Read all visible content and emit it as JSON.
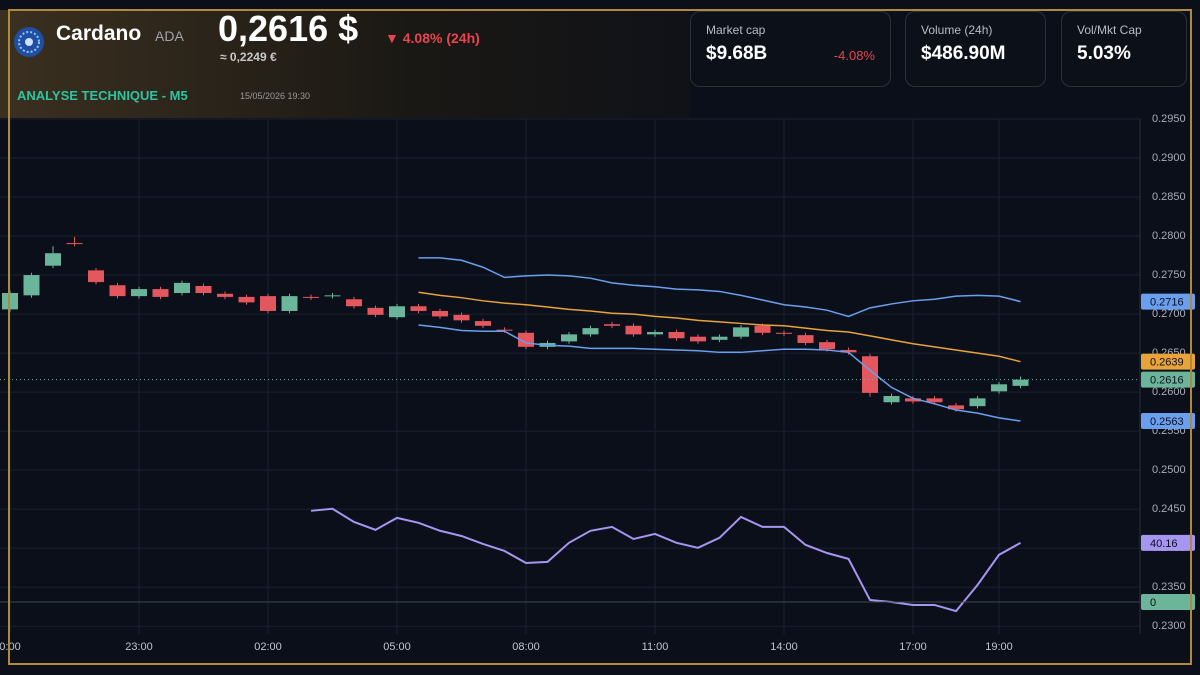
{
  "header": {
    "name": "Cardano",
    "symbol": "ADA",
    "price": "0,2616 $",
    "change": "▼ 4.08% (24h)",
    "eur": "≈ 0,2249 €",
    "subtitle": "ANALYSE TECHNIQUE - M5",
    "timestamp": "15/05/2026 19:30"
  },
  "stats": [
    {
      "label": "Market cap",
      "value": "$9.68B",
      "change": "-4.08%"
    },
    {
      "label": "Volume (24h)",
      "value": "$486.90M"
    },
    {
      "label": "Vol/Mkt Cap",
      "value": "5.03%"
    }
  ],
  "chart_data": {
    "type": "candlestick",
    "up_color": "#6bb59a",
    "down_color": "#e5575e",
    "grid": true,
    "categories": [
      "0:00",
      null,
      null,
      null,
      null,
      null,
      "23:00",
      null,
      null,
      null,
      null,
      null,
      "02:00",
      null,
      null,
      null,
      null,
      null,
      "05:00",
      null,
      null,
      null,
      null,
      null,
      "08:00",
      null,
      null,
      null,
      null,
      null,
      "11:00",
      null,
      null,
      null,
      null,
      null,
      "14:00",
      null,
      null,
      null,
      null,
      null,
      "17:00",
      null,
      null,
      null,
      "19:00",
      null
    ],
    "open": [
      0.2706,
      0.2724,
      0.2762,
      0.2791,
      0.2756,
      0.2737,
      0.2723,
      0.2732,
      0.2727,
      0.2736,
      0.2726,
      0.2722,
      0.2723,
      0.2704,
      0.2722,
      0.2723,
      0.2719,
      0.2708,
      0.2696,
      0.271,
      0.2704,
      0.2699,
      0.2691,
      0.268,
      0.2676,
      0.2658,
      0.2665,
      0.2674,
      0.2687,
      0.2685,
      0.2674,
      0.2677,
      0.2671,
      0.2667,
      0.2671,
      0.2685,
      0.2676,
      0.2673,
      0.2664,
      0.2654,
      0.2646,
      0.2587,
      0.2592,
      0.2592,
      0.2583,
      0.2582,
      0.2601,
      0.2608
    ],
    "high": [
      0.273,
      0.2753,
      0.2787,
      0.2799,
      0.2759,
      0.274,
      0.2735,
      0.2735,
      0.2743,
      0.2739,
      0.2729,
      0.2725,
      0.2726,
      0.2726,
      0.2725,
      0.2727,
      0.2722,
      0.2711,
      0.2713,
      0.2713,
      0.2707,
      0.2702,
      0.2694,
      0.2683,
      0.2679,
      0.2666,
      0.2677,
      0.2685,
      0.269,
      0.2688,
      0.268,
      0.268,
      0.2674,
      0.2674,
      0.2686,
      0.2688,
      0.2679,
      0.2676,
      0.2667,
      0.2657,
      0.2649,
      0.2598,
      0.2595,
      0.2595,
      0.2586,
      0.2595,
      0.2613,
      0.262
    ],
    "low": [
      0.2703,
      0.2721,
      0.2759,
      0.2787,
      0.2738,
      0.272,
      0.272,
      0.2719,
      0.2724,
      0.2724,
      0.2719,
      0.2712,
      0.2701,
      0.2701,
      0.2718,
      0.272,
      0.2707,
      0.2696,
      0.2693,
      0.2701,
      0.2694,
      0.2689,
      0.2682,
      0.2676,
      0.2655,
      0.2655,
      0.2662,
      0.2671,
      0.2682,
      0.2671,
      0.2671,
      0.2666,
      0.2662,
      0.2664,
      0.2668,
      0.2673,
      0.2672,
      0.266,
      0.2652,
      0.2648,
      0.2594,
      0.2584,
      0.2585,
      0.2584,
      0.2575,
      0.2579,
      0.2598,
      0.2605
    ],
    "close": [
      0.2727,
      0.275,
      0.2778,
      0.279,
      0.2741,
      0.2723,
      0.2732,
      0.2722,
      0.274,
      0.2727,
      0.2722,
      0.2715,
      0.2704,
      0.2723,
      0.2721,
      0.2724,
      0.271,
      0.2699,
      0.271,
      0.2704,
      0.2697,
      0.2692,
      0.2685,
      0.2679,
      0.2658,
      0.2663,
      0.2674,
      0.2682,
      0.2685,
      0.2674,
      0.2677,
      0.2669,
      0.2665,
      0.2671,
      0.2683,
      0.2676,
      0.2675,
      0.2663,
      0.2655,
      0.2651,
      0.2599,
      0.2595,
      0.2588,
      0.2587,
      0.2578,
      0.2592,
      0.261,
      0.2616
    ],
    "ylim": [
      0.229,
      0.295
    ],
    "yticks": [
      {
        "value": 0.23,
        "label": "0.2300"
      },
      {
        "value": 0.235,
        "label": "0.2350"
      },
      {
        "value": 0.24,
        "label": "0.2400"
      },
      {
        "value": 0.245,
        "label": "0.2450"
      },
      {
        "value": 0.25,
        "label": "0.2500"
      },
      {
        "value": 0.255,
        "label": "0.2550"
      },
      {
        "value": 0.26,
        "label": "0.2600"
      },
      {
        "value": 0.265,
        "label": "0.2650"
      },
      {
        "value": 0.27,
        "label": "0.2700"
      },
      {
        "value": 0.275,
        "label": "0.2750"
      },
      {
        "value": 0.28,
        "label": "0.2800"
      },
      {
        "value": 0.285,
        "label": "0.2850"
      },
      {
        "value": 0.29,
        "label": "0.2900"
      },
      {
        "value": 0.295,
        "label": "0.2950"
      }
    ],
    "y2lim": [
      0,
      227
    ],
    "series": [
      {
        "color": "#6a9ff0",
        "values": [
          null,
          null,
          null,
          null,
          null,
          null,
          null,
          null,
          null,
          null,
          null,
          null,
          null,
          null,
          null,
          null,
          null,
          null,
          null,
          0.2772,
          0.2772,
          0.2769,
          0.276,
          0.2747,
          0.2749,
          0.275,
          0.2749,
          0.2746,
          0.274,
          0.2737,
          0.2735,
          0.2732,
          0.2731,
          0.2729,
          0.2724,
          0.2718,
          0.2712,
          0.2709,
          0.2705,
          0.2697,
          0.2708,
          0.2713,
          0.2717,
          0.2719,
          0.2723,
          0.2724,
          0.2723,
          0.2716
        ]
      },
      {
        "color": "#e8a33a",
        "values": [
          null,
          null,
          null,
          null,
          null,
          null,
          null,
          null,
          null,
          null,
          null,
          null,
          null,
          null,
          null,
          null,
          null,
          null,
          null,
          0.2728,
          0.2724,
          0.2721,
          0.2717,
          0.2714,
          0.2712,
          0.2709,
          0.2706,
          0.2704,
          0.2701,
          0.27,
          0.2697,
          0.2695,
          0.2692,
          0.269,
          0.2688,
          0.2686,
          0.2685,
          0.2682,
          0.2679,
          0.2677,
          0.2672,
          0.2667,
          0.2662,
          0.2658,
          0.2654,
          0.265,
          0.2646,
          0.2639
        ]
      },
      {
        "color": "#6a9ff0",
        "values": [
          null,
          null,
          null,
          null,
          null,
          null,
          null,
          null,
          null,
          null,
          null,
          null,
          null,
          null,
          null,
          null,
          null,
          null,
          null,
          0.2686,
          0.2683,
          0.2679,
          0.2678,
          0.2678,
          0.2663,
          0.266,
          0.2659,
          0.2656,
          0.2656,
          0.2656,
          0.2655,
          0.2654,
          0.2653,
          0.2651,
          0.2651,
          0.2653,
          0.2655,
          0.2655,
          0.2654,
          0.2651,
          0.2628,
          0.2606,
          0.2592,
          0.2585,
          0.2577,
          0.2573,
          0.2567,
          0.2563
        ]
      },
      {
        "color": "#a795f2",
        "axis": "y2",
        "values": [
          null,
          null,
          null,
          null,
          null,
          null,
          null,
          null,
          null,
          null,
          null,
          null,
          null,
          null,
          54.3,
          55.2,
          49.4,
          45.9,
          51.2,
          49.0,
          45.5,
          43.2,
          39.7,
          36.6,
          31.3,
          31.8,
          40.2,
          45.5,
          47.2,
          41.9,
          44.1,
          40.2,
          38.0,
          42.4,
          51.6,
          47.2,
          47.2,
          39.3,
          35.7,
          33.1,
          15.0,
          14.1,
          12.8,
          12.8,
          10.1,
          21.6,
          34.9,
          40.16
        ]
      }
    ],
    "levels": [
      {
        "value": 0,
        "color": "#6bb59a"
      }
    ]
  }
}
